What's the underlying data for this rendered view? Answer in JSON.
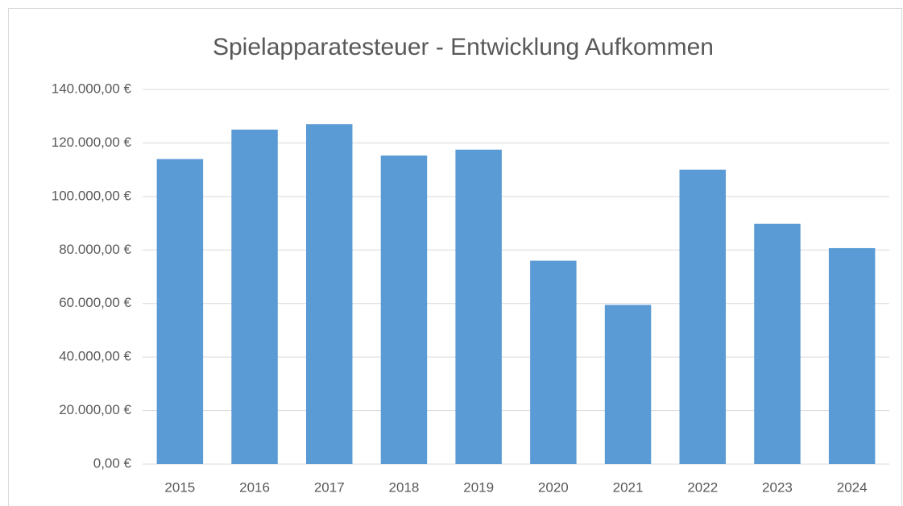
{
  "chart_data": {
    "type": "bar",
    "title": "Spielapparatesteuer - Entwicklung Aufkommen",
    "categories": [
      "2015",
      "2016",
      "2017",
      "2018",
      "2019",
      "2020",
      "2021",
      "2022",
      "2023",
      "2024"
    ],
    "values": [
      114000,
      125000,
      127000,
      115300,
      117500,
      76000,
      59500,
      110000,
      89800,
      80700
    ],
    "color": "#5b9bd5",
    "ylim": [
      0,
      140000
    ],
    "yticks": [
      {
        "value": 0,
        "label": "0,00 €"
      },
      {
        "value": 20000,
        "label": "20.000,00 €"
      },
      {
        "value": 40000,
        "label": "40.000,00 €"
      },
      {
        "value": 60000,
        "label": "60.000,00 €"
      },
      {
        "value": 80000,
        "label": "80.000,00 €"
      },
      {
        "value": 100000,
        "label": "100.000,00 €"
      },
      {
        "value": 120000,
        "label": "120.000,00 €"
      },
      {
        "value": 140000,
        "label": "140.000,00 €"
      }
    ],
    "grid": true
  }
}
